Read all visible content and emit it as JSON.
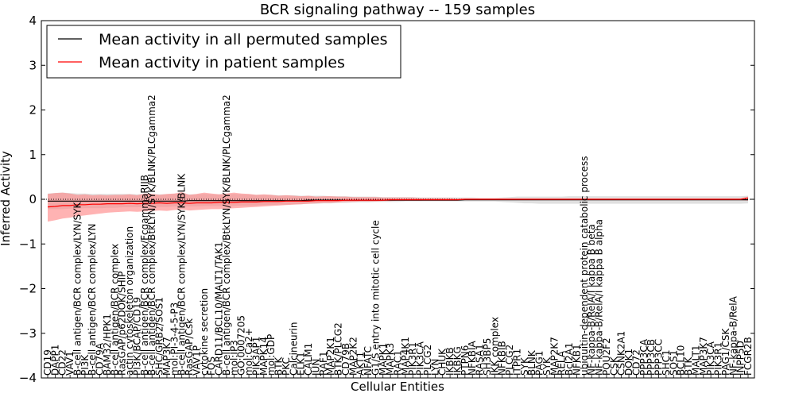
{
  "chart_data": {
    "type": "line",
    "title": "BCR signaling pathway -- 159 samples",
    "xlabel": "Cellular Entities",
    "ylabel": "Inferred Activity",
    "ylim": [
      -4,
      4
    ],
    "yticks": [
      "4",
      "3",
      "2",
      "1",
      "0",
      "−1",
      "−2",
      "−3",
      "−4"
    ],
    "grid": false,
    "reference_line": 0,
    "legend_position": "top-left",
    "entity_labels": [
      "CD19",
      "DAPP1",
      "CD22",
      "VAV1",
      "B-cell antigen/BCR complex/LYN/SYK",
      "PI3K",
      "B-cell antigen/BCR complex/LYN",
      "CD79A",
      "BAM32/HPK1",
      "B-cell antigen/BCR complex",
      "RasGAP/p62DOK/SHIP",
      "actin cytoskeleton organization",
      "PI3K/BCAP/CD19",
      "B-cell antigen/BCR complex/FcgammaRIIB",
      "B-cell antigen/BCR complex/BtkLYN/SYK/BLNK/PLCgamma2",
      "SHC/GRB2/SOS1",
      "MAP3K7",
      "mol:PI-3-4-5-P3",
      "B-cell antigen/BCR complex/LYN/SYK/BLNK",
      "RasGAP/Csk",
      "VAV1P",
      "cytokine secretion",
      "FOS",
      "CARD11/BCL10/MALT1/TAK1",
      "B-cell antigen/BCR complex/BtkLYN/SYK/BLNK/PLCgamma2",
      "mol:IP3",
      "GO:0007205",
      "mol:Ca2+",
      "PIK3AP1",
      "MAPK14",
      "mol:GDP",
      "BTK",
      "PKC",
      "Calcineurin",
      "ELK1",
      "CALM1",
      "JUN",
      "RAF1",
      "MAP2K1",
      "BTK/PLCG2",
      "CD79B",
      "MAP2K2",
      "AKT1",
      "NFATC",
      "G1/S entry into mitotic cell cycle",
      "MAPK1",
      "MAPK3",
      "RAC1",
      "MAP4K1",
      "PIK3R1",
      "PIK3CA",
      "PLCG2",
      "LYN",
      "CHUK",
      "IKBKB",
      "IKBKG",
      "PTPN6",
      "NFKBIA",
      "RASA1",
      "SH3BP5",
      "IKK complex",
      "NFKBIB",
      "PLCG2",
      "ITPR1",
      "SYK",
      "BLNK",
      "PAG1",
      "SYK",
      "MAP2K7",
      "RELA",
      "Bcl2A1",
      "NFKB1",
      "ubiquitin-dependent protein catabolic process",
      "NF-kappa-B/RelA/I kappa B beta",
      "NF-kappa-B/RelA/I kappa B alpha",
      "POU2F2",
      "CSK",
      "CSNK2A1",
      "DOK1",
      "CD72",
      "PPP3CA",
      "PPP3CB",
      "PPP3CC",
      "SHC1",
      "SOS1",
      "BCL10",
      "BTK",
      "MALT1",
      "MAP3K7",
      "PIK3CA",
      "PIK3R1",
      "PAG1/CSK",
      "NF-kappa-B/RelA",
      "INPP5D",
      "FCGR2B"
    ],
    "series": [
      {
        "name": "Mean activity in all permuted samples",
        "color": "#000000",
        "values": [
          -0.04,
          -0.04,
          -0.04,
          -0.04,
          -0.04,
          -0.04,
          -0.04,
          -0.04,
          -0.04,
          -0.04,
          -0.04,
          -0.04,
          -0.04,
          -0.04,
          -0.04,
          -0.04,
          -0.04,
          -0.04,
          -0.04,
          -0.03,
          -0.03,
          -0.03,
          -0.03,
          -0.03,
          -0.03,
          -0.03,
          -0.03,
          -0.03,
          -0.03,
          -0.03,
          -0.03,
          -0.03,
          -0.03,
          -0.03,
          -0.03,
          -0.02,
          -0.02,
          -0.02,
          -0.02,
          -0.02,
          -0.02,
          -0.02,
          -0.02,
          -0.02,
          -0.02,
          -0.02,
          -0.02,
          -0.02,
          -0.02,
          -0.02,
          -0.02,
          -0.02,
          -0.02,
          -0.02,
          -0.02,
          -0.02,
          -0.01,
          -0.01,
          -0.01,
          -0.01,
          -0.01,
          -0.01,
          -0.01,
          -0.01,
          -0.01,
          -0.01,
          -0.01,
          -0.01,
          -0.01,
          -0.01,
          -0.01,
          -0.01,
          -0.01,
          -0.01,
          -0.01,
          -0.01,
          -0.01,
          -0.01,
          -0.01,
          -0.01,
          -0.01,
          -0.01,
          -0.01,
          -0.01,
          -0.01,
          -0.01,
          -0.01,
          -0.01,
          -0.01,
          -0.01,
          -0.01,
          -0.01,
          -0.01,
          -0.01,
          -0.01
        ]
      },
      {
        "name": "Mean activity in patient samples",
        "color": "#ff0000",
        "values": [
          -0.17,
          -0.16,
          -0.14,
          -0.14,
          -0.12,
          -0.12,
          -0.11,
          -0.11,
          -0.1,
          -0.1,
          -0.1,
          -0.09,
          -0.1,
          -0.09,
          -0.09,
          -0.08,
          -0.09,
          -0.08,
          -0.08,
          -0.09,
          -0.08,
          -0.08,
          -0.08,
          -0.07,
          -0.07,
          -0.07,
          -0.06,
          -0.06,
          -0.06,
          -0.05,
          -0.05,
          -0.05,
          -0.04,
          -0.04,
          -0.04,
          -0.04,
          -0.03,
          -0.03,
          -0.03,
          -0.03,
          -0.02,
          -0.02,
          -0.02,
          -0.02,
          -0.02,
          -0.02,
          -0.01,
          -0.01,
          -0.01,
          -0.01,
          -0.01,
          -0.01,
          -0.01,
          -0.01,
          -0.01,
          -0.01,
          0.0,
          0.0,
          0.0,
          0.0,
          0.0,
          0.0,
          0.0,
          0.0,
          0.0,
          0.0,
          0.0,
          0.0,
          0.0,
          0.0,
          0.0,
          0.0,
          0.0,
          0.0,
          0.0,
          0.0,
          0.0,
          0.0,
          0.0,
          0.0,
          0.0,
          0.0,
          0.0,
          0.0,
          0.0,
          0.0,
          0.0,
          0.0,
          0.0,
          0.0,
          0.0,
          0.0,
          0.0,
          0.0,
          0.03
        ]
      }
    ],
    "bands": {
      "patient_upper": [
        0.12,
        0.14,
        0.15,
        0.13,
        0.1,
        0.11,
        0.09,
        0.1,
        0.09,
        0.1,
        0.1,
        0.11,
        0.09,
        0.13,
        0.12,
        0.1,
        0.12,
        0.13,
        0.16,
        0.1,
        0.12,
        0.15,
        0.13,
        0.11,
        0.13,
        0.15,
        0.13,
        0.12,
        0.1,
        0.11,
        0.1,
        0.08,
        0.09,
        0.08,
        0.07,
        0.08,
        0.06,
        0.07,
        0.07,
        0.06,
        0.06,
        0.05,
        0.05,
        0.05,
        0.05,
        0.04,
        0.04,
        0.04,
        0.04,
        0.04,
        0.03,
        0.03,
        0.03,
        0.03,
        0.03,
        0.02,
        0.02,
        0.02,
        0.02,
        0.02,
        0.02,
        0.02,
        0.02,
        0.02,
        0.02,
        0.02,
        0.02,
        0.02,
        0.02,
        0.02,
        0.02,
        0.02,
        0.02,
        0.02,
        0.02,
        0.02,
        0.02,
        0.02,
        0.02,
        0.02,
        0.02,
        0.02,
        0.02,
        0.02,
        0.02,
        0.02,
        0.02,
        0.02,
        0.02,
        0.02,
        0.02,
        0.02,
        0.02,
        0.02,
        0.06
      ],
      "patient_lower": [
        -0.5,
        -0.47,
        -0.43,
        -0.41,
        -0.38,
        -0.36,
        -0.34,
        -0.32,
        -0.3,
        -0.29,
        -0.28,
        -0.27,
        -0.28,
        -0.27,
        -0.26,
        -0.25,
        -0.26,
        -0.24,
        -0.23,
        -0.25,
        -0.24,
        -0.23,
        -0.22,
        -0.22,
        -0.21,
        -0.2,
        -0.19,
        -0.18,
        -0.17,
        -0.16,
        -0.15,
        -0.14,
        -0.13,
        -0.12,
        -0.11,
        -0.1,
        -0.09,
        -0.08,
        -0.08,
        -0.07,
        -0.06,
        -0.06,
        -0.05,
        -0.05,
        -0.05,
        -0.04,
        -0.04,
        -0.03,
        -0.03,
        -0.03,
        -0.03,
        -0.02,
        -0.02,
        -0.02,
        -0.02,
        -0.02,
        -0.02,
        -0.02,
        -0.02,
        -0.02,
        -0.02,
        -0.02,
        -0.02,
        -0.02,
        -0.02,
        -0.02,
        -0.02,
        -0.02,
        -0.02,
        -0.02,
        -0.02,
        -0.02,
        -0.02,
        -0.02,
        -0.02,
        -0.02,
        -0.02,
        -0.02,
        -0.02,
        -0.02,
        -0.02,
        -0.02,
        -0.02,
        -0.02,
        -0.02,
        -0.02,
        -0.02,
        -0.02,
        -0.02,
        -0.02,
        -0.02,
        -0.02,
        -0.02,
        -0.02,
        -0.03
      ],
      "permuted_upper": [
        0.13,
        0.14,
        0.15,
        0.14,
        0.13,
        0.13,
        0.12,
        0.12,
        0.12,
        0.12,
        0.12,
        0.12,
        0.11,
        0.12,
        0.12,
        0.11,
        0.11,
        0.12,
        0.12,
        0.11,
        0.11,
        0.12,
        0.11,
        0.11,
        0.11,
        0.12,
        0.11,
        0.11,
        0.1,
        0.1,
        0.1,
        0.09,
        0.09,
        0.09,
        0.08,
        0.08,
        0.08,
        0.08,
        0.07,
        0.07,
        0.07,
        0.06,
        0.06,
        0.06,
        0.06,
        0.05,
        0.05,
        0.05,
        0.05,
        0.05,
        0.04,
        0.04,
        0.04,
        0.04,
        0.04,
        0.04,
        0.04,
        0.04,
        0.03,
        0.03,
        0.03,
        0.04,
        0.05,
        0.06,
        0.06,
        0.06,
        0.06,
        0.06,
        0.06,
        0.06,
        0.07,
        0.07,
        0.07,
        0.07,
        0.07,
        0.07,
        0.07,
        0.07,
        0.07,
        0.07,
        0.07,
        0.07,
        0.07,
        0.07,
        0.07,
        0.07,
        0.07,
        0.07,
        0.07,
        0.07,
        0.07,
        0.07,
        0.07,
        0.07,
        0.08
      ],
      "permuted_lower": [
        -0.22,
        -0.22,
        -0.22,
        -0.21,
        -0.21,
        -0.2,
        -0.2,
        -0.2,
        -0.19,
        -0.19,
        -0.18,
        -0.18,
        -0.18,
        -0.17,
        -0.17,
        -0.17,
        -0.17,
        -0.16,
        -0.16,
        -0.16,
        -0.16,
        -0.15,
        -0.15,
        -0.15,
        -0.15,
        -0.15,
        -0.14,
        -0.14,
        -0.14,
        -0.13,
        -0.13,
        -0.12,
        -0.12,
        -0.11,
        -0.11,
        -0.1,
        -0.1,
        -0.09,
        -0.09,
        -0.08,
        -0.08,
        -0.07,
        -0.07,
        -0.07,
        -0.06,
        -0.06,
        -0.06,
        -0.06,
        -0.05,
        -0.05,
        -0.05,
        -0.05,
        -0.05,
        -0.05,
        -0.05,
        -0.05,
        -0.05,
        -0.05,
        -0.05,
        -0.05,
        -0.05,
        -0.06,
        -0.07,
        -0.08,
        -0.09,
        -0.09,
        -0.1,
        -0.1,
        -0.1,
        -0.1,
        -0.1,
        -0.1,
        -0.1,
        -0.1,
        -0.1,
        -0.1,
        -0.1,
        -0.1,
        -0.1,
        -0.1,
        -0.1,
        -0.1,
        -0.1,
        -0.1,
        -0.1,
        -0.1,
        -0.1,
        -0.1,
        -0.1,
        -0.1,
        -0.1,
        -0.1,
        -0.1,
        -0.1,
        -0.09
      ]
    },
    "colors": {
      "patient_band": "#ff8080",
      "permuted_band": "#cccccc",
      "axes": "#000000",
      "dotted_zero": "#000000"
    }
  }
}
